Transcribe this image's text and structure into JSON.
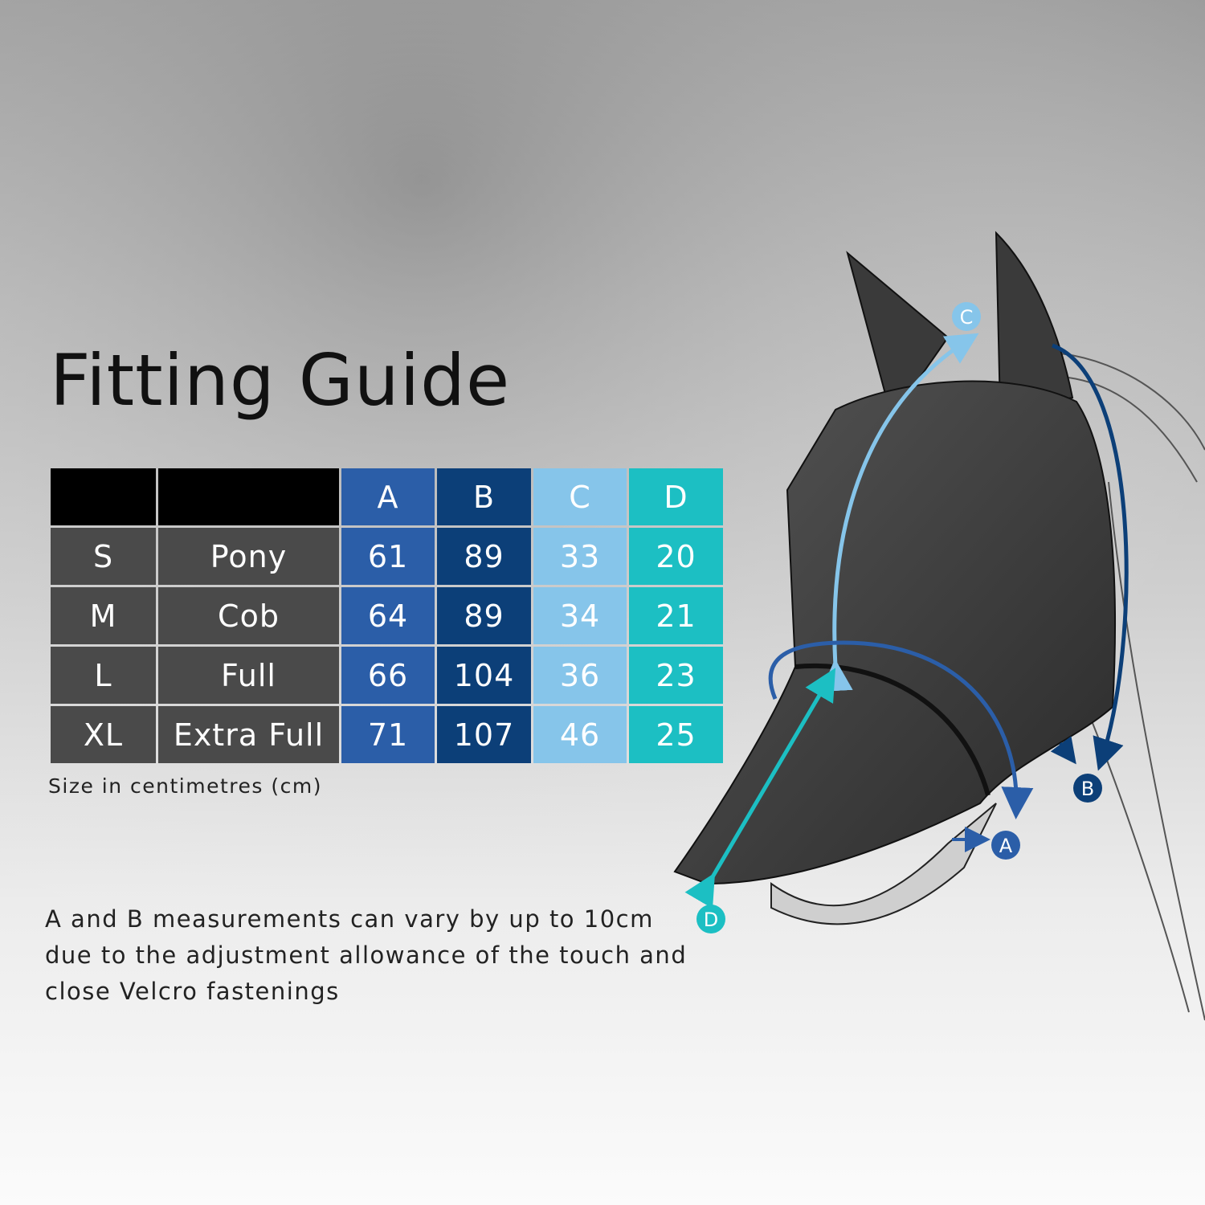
{
  "title": "Fitting Guide",
  "table": {
    "headers": [
      "",
      "",
      "A",
      "B",
      "C",
      "D"
    ],
    "rows": [
      {
        "size": "S",
        "type": "Pony",
        "A": "61",
        "B": "89",
        "C": "33",
        "D": "20"
      },
      {
        "size": "M",
        "type": "Cob",
        "A": "64",
        "B": "89",
        "C": "34",
        "D": "21"
      },
      {
        "size": "L",
        "type": "Full",
        "A": "66",
        "B": "104",
        "C": "36",
        "D": "23"
      },
      {
        "size": "XL",
        "type": "Extra Full",
        "A": "71",
        "B": "107",
        "C": "46",
        "D": "25"
      }
    ]
  },
  "unit_note": "Size in centimetres (cm)",
  "footnote": "A and B measurements can vary by up to 10cm due to the adjustment allowance of the touch and close Velcro fastenings",
  "diagram": {
    "markers": {
      "A": "A",
      "B": "B",
      "C": "C",
      "D": "D"
    }
  },
  "colors": {
    "A": "#2b5ea8",
    "B": "#0c3f78",
    "C": "#86c5ea",
    "D": "#1cbfc3",
    "label_cells": "#4a4a4a",
    "header": "#000000"
  }
}
